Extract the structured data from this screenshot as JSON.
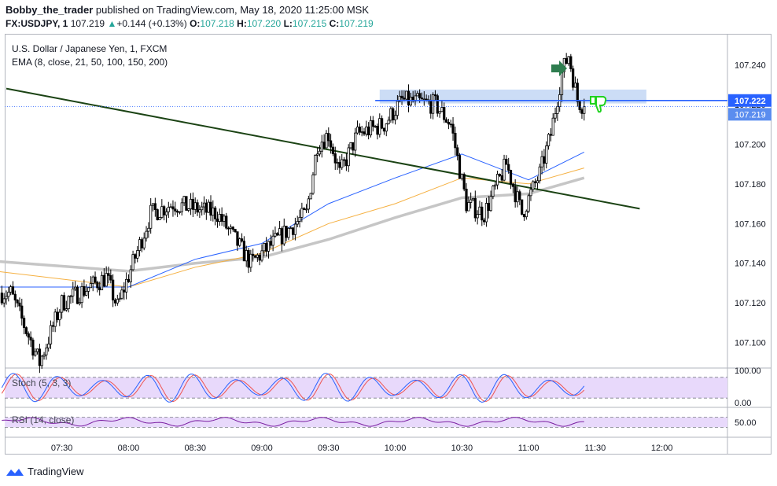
{
  "header": {
    "author": "Bobby_the_trader",
    "published": "published on TradingView.com, May 18, 2020 11:25:00 MSK",
    "symbol": "FX:USDJPY, 1",
    "last": "107.219",
    "change_arrow": "▲",
    "change": "+0.144 (+0.13%)",
    "o_label": "O:",
    "o_value": "107.218",
    "h_label": "H:",
    "h_value": "107.220",
    "l_label": "L:",
    "l_value": "107.215",
    "c_label": "C:",
    "c_value": "107.219"
  },
  "legend": {
    "instrument": "U.S. Dollar / Japanese Yen, 1, FXCM",
    "ema": "EMA (8, close, 21, 50, 100, 150, 200)"
  },
  "stoch": {
    "label": "Stoch (5, 3, 3)",
    "ticks": [
      "100.00",
      "0.00"
    ]
  },
  "rsi": {
    "label": "RSI (14, close)",
    "ticks": [
      "50.00"
    ]
  },
  "price_badges": {
    "line": "107.222",
    "last": "107.219"
  },
  "footer": {
    "brand": "TradingView"
  },
  "colors": {
    "up": "#ffffff",
    "down": "#000000",
    "wick": "#000000",
    "ema_fast": "#2962ff",
    "ema_mid": "#f5b041",
    "ema_slow": "#c6c6c6",
    "trendline": "#1b4314",
    "hline": "#2962ff",
    "zone": "#bbd1f3",
    "stoch_k": "#2962ff",
    "stoch_d": "#ef5350",
    "rsi": "#7b1fa2",
    "osc_band": "#e8d9fb"
  },
  "chart_data": {
    "type": "candlestick",
    "x_ticks": [
      "07:30",
      "08:00",
      "08:30",
      "09:00",
      "09:30",
      "10:00",
      "10:30",
      "11:00",
      "11:30",
      "12:00"
    ],
    "y_ticks": [
      "107.240",
      "107.220",
      "107.200",
      "107.180",
      "107.160",
      "107.140",
      "107.120",
      "107.100"
    ],
    "ylim": [
      107.088,
      107.254
    ],
    "x_start_min": 425,
    "x_end_min": 747,
    "horizontal_level": 107.222,
    "resistance_zone": [
      107.2205,
      107.2275
    ],
    "trendline": {
      "from": {
        "t_min": 425,
        "price": 107.228
      },
      "to": {
        "t_min": 710,
        "price": 107.1675
      }
    },
    "key_points": [
      {
        "t": "07:07",
        "price": 107.125
      },
      {
        "t": "07:20",
        "price": 107.09
      },
      {
        "t": "07:30",
        "price": 107.12
      },
      {
        "t": "07:50",
        "price": 107.133
      },
      {
        "t": "07:55",
        "price": 107.118
      },
      {
        "t": "08:10",
        "price": 107.165
      },
      {
        "t": "08:20",
        "price": 107.17
      },
      {
        "t": "08:40",
        "price": 107.165
      },
      {
        "t": "08:55",
        "price": 107.14
      },
      {
        "t": "09:05",
        "price": 107.15
      },
      {
        "t": "09:20",
        "price": 107.165
      },
      {
        "t": "09:25",
        "price": 107.2
      },
      {
        "t": "09:30",
        "price": 107.205
      },
      {
        "t": "09:35",
        "price": 107.185
      },
      {
        "t": "09:43",
        "price": 107.205
      },
      {
        "t": "09:55",
        "price": 107.21
      },
      {
        "t": "10:03",
        "price": 107.222
      },
      {
        "t": "10:18",
        "price": 107.22
      },
      {
        "t": "10:25",
        "price": 107.21
      },
      {
        "t": "10:32",
        "price": 107.17
      },
      {
        "t": "10:40",
        "price": 107.165
      },
      {
        "t": "10:50",
        "price": 107.19
      },
      {
        "t": "10:57",
        "price": 107.165
      },
      {
        "t": "11:05",
        "price": 107.185
      },
      {
        "t": "11:10",
        "price": 107.205
      },
      {
        "t": "11:15",
        "price": 107.236
      },
      {
        "t": "11:18",
        "price": 107.245
      },
      {
        "t": "11:22",
        "price": 107.222
      },
      {
        "t": "11:25",
        "price": 107.219
      }
    ],
    "ema_fast_points": [
      {
        "t": "07:00",
        "price": 107.128
      },
      {
        "t": "08:00",
        "price": 107.128
      },
      {
        "t": "08:30",
        "price": 107.142
      },
      {
        "t": "09:00",
        "price": 107.15
      },
      {
        "t": "09:30",
        "price": 107.17
      },
      {
        "t": "10:00",
        "price": 107.183
      },
      {
        "t": "10:30",
        "price": 107.195
      },
      {
        "t": "11:00",
        "price": 107.182
      },
      {
        "t": "11:25",
        "price": 107.196
      }
    ],
    "ema_mid_points": [
      {
        "t": "07:00",
        "price": 107.136
      },
      {
        "t": "08:00",
        "price": 107.128
      },
      {
        "t": "08:30",
        "price": 107.138
      },
      {
        "t": "09:00",
        "price": 107.145
      },
      {
        "t": "09:30",
        "price": 107.16
      },
      {
        "t": "10:00",
        "price": 107.17
      },
      {
        "t": "10:30",
        "price": 107.183
      },
      {
        "t": "11:00",
        "price": 107.18
      },
      {
        "t": "11:25",
        "price": 107.188
      }
    ],
    "ema_slow_points": [
      {
        "t": "07:00",
        "price": 107.141
      },
      {
        "t": "08:00",
        "price": 107.136
      },
      {
        "t": "08:30",
        "price": 107.14
      },
      {
        "t": "09:00",
        "price": 107.143
      },
      {
        "t": "09:30",
        "price": 107.152
      },
      {
        "t": "10:00",
        "price": 107.163
      },
      {
        "t": "10:30",
        "price": 107.173
      },
      {
        "t": "11:00",
        "price": 107.175
      },
      {
        "t": "11:25",
        "price": 107.183
      }
    ],
    "stoch_ylim": [
      0,
      100
    ],
    "stoch_band": [
      20,
      80
    ],
    "rsi_ylim": [
      0,
      100
    ],
    "rsi_band": [
      30,
      70
    ]
  }
}
